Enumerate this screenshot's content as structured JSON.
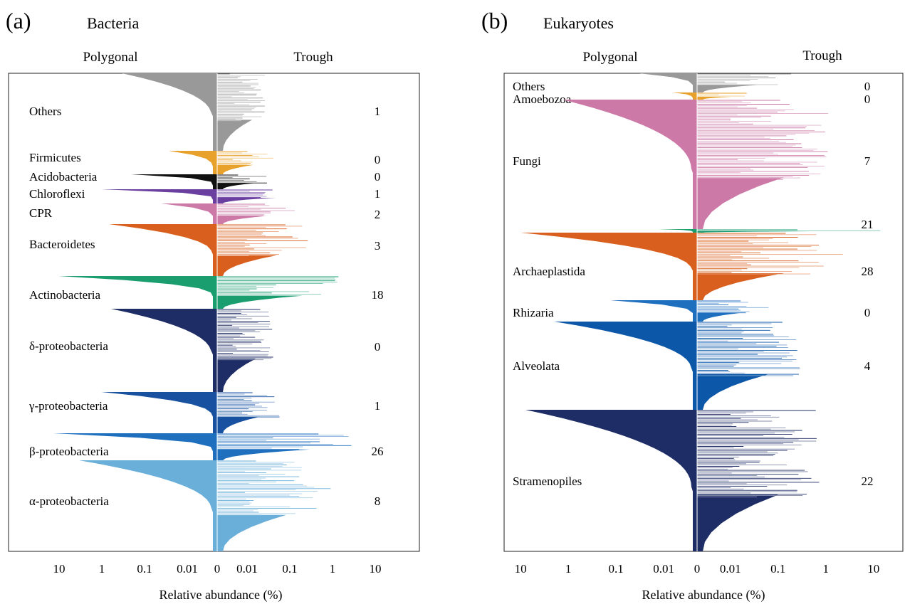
{
  "chart_data": [
    {
      "type": "bar",
      "panel_label": "(a)",
      "title": "Bacteria",
      "left_heading": "Polygonal",
      "right_heading": "Trough",
      "xlabel": "Relative abundance (%)",
      "x_scale": "log-mirrored",
      "x_ticks_left": [
        "10",
        "1",
        "0.1",
        "0.01"
      ],
      "x_tick_center": "0",
      "x_ticks_right": [
        "0.01",
        "0.1",
        "1",
        "10"
      ],
      "groups": [
        {
          "name": "Others",
          "count": "1",
          "color": "#999999",
          "peak_polygonal": 0.5,
          "peak_trough": 0.07
        },
        {
          "name": "Firmicutes",
          "count": "0",
          "color": "#e8a12a",
          "peak_polygonal": 0.04,
          "peak_trough": 0.08
        },
        {
          "name": "Acidobacteria",
          "count": "0",
          "color": "#111111",
          "peak_polygonal": 0.3,
          "peak_trough": 0.08
        },
        {
          "name": "Chloroflexi",
          "count": "1",
          "color": "#6b3fa0",
          "peak_polygonal": 1.5,
          "peak_trough": 0.7
        },
        {
          "name": "CPR",
          "count": "2",
          "color": "#cc79a7",
          "peak_polygonal": 0.06,
          "peak_trough": 0.3
        },
        {
          "name": "Bacteroidetes",
          "count": "3",
          "color": "#d95f1e",
          "peak_polygonal": 1.0,
          "peak_trough": 0.8
        },
        {
          "name": "Actinobacteria",
          "count": "18",
          "color": "#1a9e6f",
          "peak_polygonal": 15,
          "peak_trough": 10
        },
        {
          "name": "δ-proteobacteria",
          "count": "0",
          "color": "#1f2d66",
          "peak_polygonal": 0.9,
          "peak_trough": 0.1
        },
        {
          "name": "γ-proteobacteria",
          "count": "1",
          "color": "#1751a0",
          "peak_polygonal": 1.5,
          "peak_trough": 0.15
        },
        {
          "name": "β-proteobacteria",
          "count": "26",
          "color": "#1f6fbf",
          "peak_polygonal": 20,
          "peak_trough": 20
        },
        {
          "name": "α-proteobacteria",
          "count": "8",
          "color": "#6aafd9",
          "peak_polygonal": 5,
          "peak_trough": 2
        }
      ]
    },
    {
      "type": "bar",
      "panel_label": "(b)",
      "title": "Eukaryotes",
      "left_heading": "Polygonal",
      "right_heading": "Trough",
      "xlabel": "Relative abundance (%)",
      "x_scale": "log-mirrored",
      "x_ticks_left": [
        "10",
        "1",
        "0.1",
        "0.01"
      ],
      "x_tick_center": "0",
      "x_ticks_right": [
        "0.01",
        "0.1",
        "1",
        "10"
      ],
      "groups": [
        {
          "name": "Others",
          "count": "0",
          "color": "#999999",
          "peak_polygonal": 0.05,
          "peak_trough": 0.6
        },
        {
          "name": "Amoebozoa",
          "count": "0",
          "color": "#e8a12a",
          "peak_polygonal": 0.01,
          "peak_trough": 0.05
        },
        {
          "name": "Fungi",
          "count": "7",
          "color": "#cc79a7",
          "peak_polygonal": 2,
          "peak_trough": 5
        },
        {
          "name": "",
          "count": "21",
          "color": "#1a9e6f",
          "peak_polygonal": 0.02,
          "peak_trough": 50
        },
        {
          "name": "Archaeplastida",
          "count": "28",
          "color": "#d95f1e",
          "peak_polygonal": 15,
          "peak_trough": 5
        },
        {
          "name": "Rhizaria",
          "count": "0",
          "color": "#1f6fbf",
          "peak_polygonal": 0.2,
          "peak_trough": 0.1
        },
        {
          "name": "Alveolata",
          "count": "4",
          "color": "#0d57a8",
          "peak_polygonal": 3,
          "peak_trough": 1.2
        },
        {
          "name": "Stramenopiles",
          "count": "22",
          "color": "#1f2d66",
          "peak_polygonal": 12,
          "peak_trough": 3
        }
      ]
    }
  ]
}
